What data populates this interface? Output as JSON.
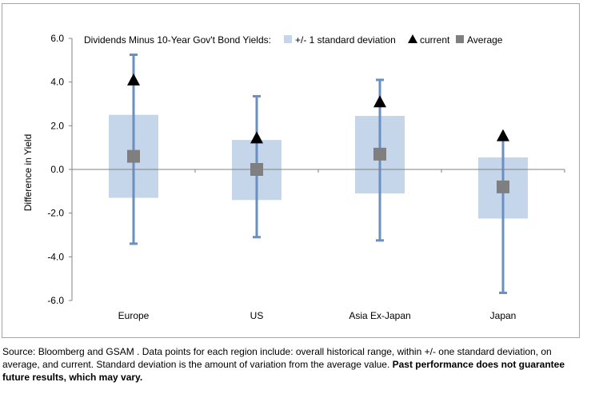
{
  "chart_data": {
    "type": "range-errorbar",
    "title": "Dividends Minus 10-Year Gov't Bond Yields:",
    "ylabel": "Difference in Yield",
    "xlabel": "",
    "ylim": [
      -6.0,
      6.0
    ],
    "yticks": [
      "6.0",
      "4.0",
      "2.0",
      "0.0",
      "-2.0",
      "-4.0",
      "-6.0"
    ],
    "ytick_values": [
      6,
      4,
      2,
      0,
      -2,
      -4,
      -6
    ],
    "categories": [
      "Europe",
      "US",
      "Asia Ex-Japan",
      "Japan"
    ],
    "legend": {
      "std_label": "+/- 1 standard deviation",
      "current_label": "current",
      "average_label": "Average",
      "placement": "top"
    },
    "series": [
      {
        "name": "historical min",
        "values": [
          -3.4,
          -3.1,
          -3.25,
          -5.65
        ]
      },
      {
        "name": "historical max",
        "values": [
          5.25,
          3.35,
          4.1,
          1.35
        ]
      },
      {
        "name": "std low",
        "values": [
          -1.3,
          -1.4,
          -1.1,
          -2.25
        ]
      },
      {
        "name": "std high",
        "values": [
          2.5,
          1.35,
          2.45,
          0.55
        ]
      },
      {
        "name": "current",
        "values": [
          4.1,
          1.45,
          3.1,
          1.55
        ]
      },
      {
        "name": "Average",
        "values": [
          0.6,
          0.0,
          0.7,
          -0.8
        ]
      }
    ],
    "colors": {
      "std_band": "#c5d5ea",
      "range_line": "#6a8fc3",
      "current": "#000000",
      "average": "#7f7f7f",
      "axis": "#808080"
    }
  },
  "footnote": {
    "normal": "Source: Bloomberg and GSAM . Data points for each region include: overall historical range, within +/- one standard deviation, on average, and current. Standard deviation is the amount of variation from the average value. ",
    "bold": "Past performance does not guarantee future results, which may vary."
  }
}
